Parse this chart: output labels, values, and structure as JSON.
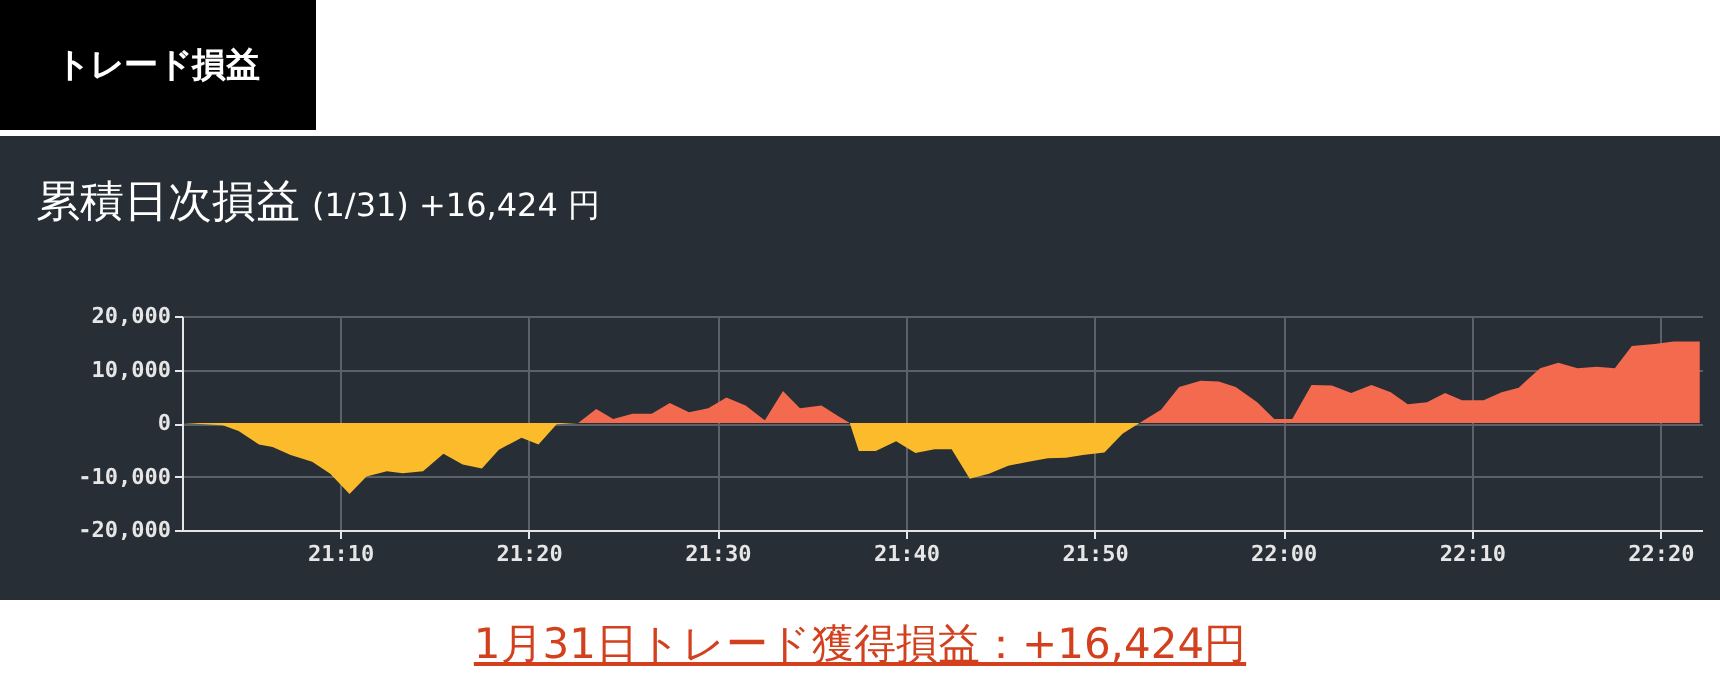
{
  "chart_data": {
    "type": "area",
    "title": "累積日次損益",
    "subtitle": "(1/31) +16,424 円",
    "annotations": [
      "トレード損益",
      "1月31日トレード獲得損益：+16,424円"
    ],
    "x": [
      21.027,
      21.063,
      21.077,
      21.095,
      21.107,
      21.123,
      21.142,
      21.158,
      21.175,
      21.19,
      21.208,
      21.222,
      21.24,
      21.258,
      21.275,
      21.292,
      21.307,
      21.327,
      21.342,
      21.358,
      21.377,
      21.393,
      21.408,
      21.425,
      21.442,
      21.458,
      21.475,
      21.492,
      21.508,
      21.525,
      21.542,
      21.558,
      21.573,
      21.592,
      21.607,
      21.617,
      21.625,
      21.64,
      21.658,
      21.675,
      21.692,
      21.707,
      21.723,
      21.74,
      21.757,
      21.775,
      21.792,
      21.808,
      21.823,
      21.842,
      21.858,
      21.873,
      21.892,
      21.908,
      21.927,
      21.943,
      21.958,
      21.977,
      21.992,
      22.008,
      22.025,
      22.043,
      22.06,
      22.078,
      22.095,
      22.11,
      22.127,
      22.143,
      22.158,
      22.177,
      22.193,
      22.208,
      22.227,
      22.243,
      22.26,
      22.277,
      22.293,
      22.308,
      22.328,
      22.345,
      22.368
    ],
    "series": [
      {
        "color": "#f46a4e",
        "values": [
          null,
          null,
          null,
          null,
          null,
          null,
          null,
          null,
          null,
          null,
          null,
          null,
          null,
          null,
          null,
          null,
          null,
          null,
          null,
          null,
          0,
          2600,
          750,
          1750,
          1750,
          3750,
          2000,
          2750,
          4750,
          3250,
          500,
          6000,
          2750,
          3250,
          1250,
          0,
          null,
          null,
          null,
          null,
          null,
          null,
          null,
          null,
          null,
          null,
          null,
          null,
          null,
          null,
          null,
          0,
          2500,
          6750,
          7900,
          7750,
          6750,
          3900,
          750,
          750,
          7100,
          7000,
          5600,
          7100,
          5750,
          3500,
          3900,
          5600,
          4250,
          4250,
          5750,
          6600,
          10250,
          11250,
          10250,
          10500,
          10250,
          14400,
          14750,
          15250,
          15250
        ]
      },
      {
        "color": "#fbbb2a",
        "values": [
          0,
          -400,
          -1500,
          -4000,
          -4500,
          -6000,
          -7250,
          -9500,
          -13250,
          -10000,
          -9000,
          -9400,
          -9000,
          -5750,
          -7750,
          -8500,
          -5000,
          -2750,
          -4000,
          -250,
          0,
          null,
          null,
          null,
          null,
          null,
          null,
          null,
          null,
          null,
          null,
          null,
          null,
          null,
          null,
          0,
          -5250,
          -5250,
          -3400,
          -5600,
          -4900,
          -4900,
          -10400,
          -9500,
          -8000,
          -7250,
          -6600,
          -6500,
          -6000,
          -5500,
          -2000,
          0,
          null,
          null,
          null,
          null,
          null,
          null,
          null,
          null,
          null,
          null,
          null,
          null,
          null,
          null,
          null,
          null,
          null,
          null,
          null,
          null,
          null,
          null,
          null,
          null,
          null,
          null,
          null,
          null,
          null
        ]
      }
    ],
    "xlim": [
      21.027,
      22.37
    ],
    "xticks": [
      {
        "value": 21.1667,
        "label": "21:10"
      },
      {
        "value": 21.3333,
        "label": "21:20"
      },
      {
        "value": 21.5,
        "label": "21:30"
      },
      {
        "value": 21.6667,
        "label": "21:40"
      },
      {
        "value": 21.8333,
        "label": "21:50"
      },
      {
        "value": 22,
        "label": "22:00"
      },
      {
        "value": 22.1667,
        "label": "22:10"
      },
      {
        "value": 22.3333,
        "label": "22:20"
      }
    ],
    "ylim": [
      -20000,
      20000
    ],
    "yticks": [
      {
        "value": -20000,
        "label": "-20,000"
      },
      {
        "value": -10000,
        "label": "-10,000"
      },
      0,
      {
        "value": 10000,
        "label": "10,000"
      },
      {
        "value": 20000,
        "label": "20,000"
      }
    ],
    "grid": true
  }
}
